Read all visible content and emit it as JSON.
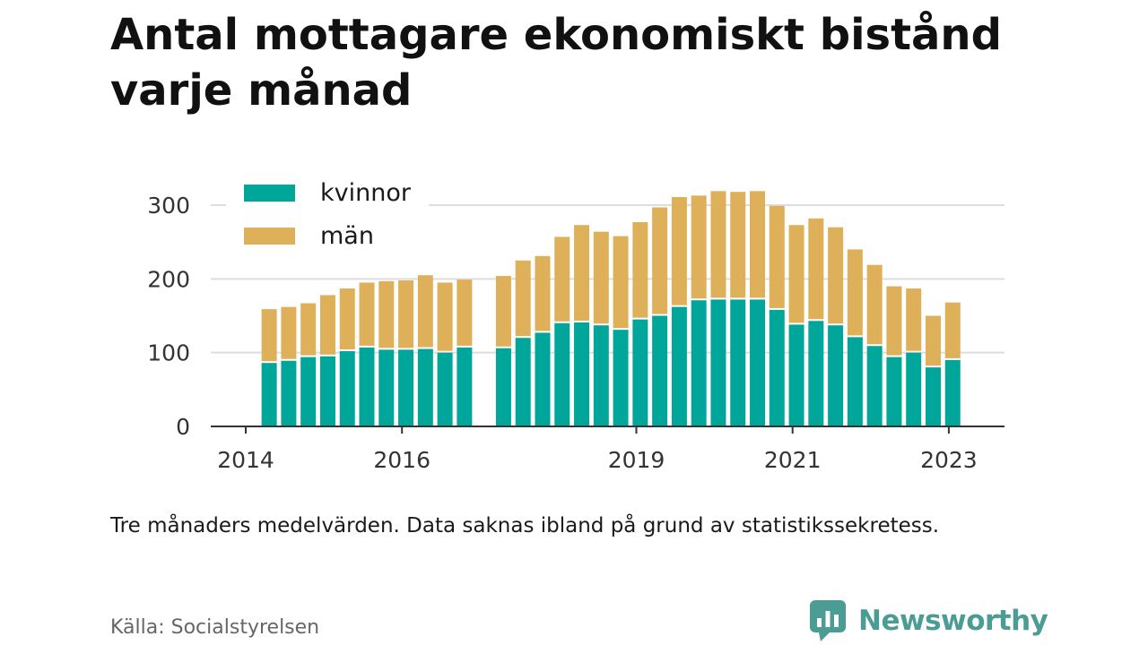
{
  "title": "Antal mottagare ekonomiskt bistånd varje månad",
  "note": "Tre månaders medelvärden. Data saknas ibland på grund av statistikssekretess.",
  "source": "Källa: Socialstyrelsen",
  "brand": {
    "name": "Newsworthy",
    "icon": "newsworthy-logo-icon",
    "color": "#4a9c94"
  },
  "colors": {
    "kvinnor": "#00a699",
    "man": "#deb05a",
    "grid": "#dddddd",
    "axis": "#333333"
  },
  "chart_data": {
    "type": "bar",
    "stacked": true,
    "grid": true,
    "legend_position": "top-left",
    "ylim": [
      0,
      325
    ],
    "yticks": [
      0,
      100,
      200,
      300
    ],
    "xticks": [
      {
        "label": "2014",
        "x": 2014.0
      },
      {
        "label": "2016",
        "x": 2016.0
      },
      {
        "label": "2019",
        "x": 2019.0
      },
      {
        "label": "2021",
        "x": 2021.0
      },
      {
        "label": "2023",
        "x": 2023.0
      }
    ],
    "x": [
      2014.3,
      2014.55,
      2014.8,
      2015.05,
      2015.3,
      2015.55,
      2015.8,
      2016.05,
      2016.3,
      2016.55,
      2016.8,
      2017.3,
      2017.55,
      2017.8,
      2018.05,
      2018.3,
      2018.55,
      2018.8,
      2019.05,
      2019.3,
      2019.55,
      2019.8,
      2020.05,
      2020.3,
      2020.55,
      2020.8,
      2021.05,
      2021.3,
      2021.55,
      2021.8,
      2022.05,
      2022.3,
      2022.55,
      2022.8,
      2023.05
    ],
    "series": [
      {
        "name": "kvinnor",
        "values": [
          86,
          89,
          94,
          95,
          102,
          107,
          104,
          104,
          105,
          100,
          107,
          106,
          120,
          127,
          140,
          141,
          137,
          131,
          145,
          150,
          162,
          171,
          172,
          172,
          172,
          158,
          138,
          143,
          137,
          121,
          109,
          94,
          100,
          80,
          90
        ]
      },
      {
        "name": "män",
        "values": [
          73,
          73,
          73,
          83,
          85,
          88,
          93,
          94,
          100,
          95,
          92,
          98,
          105,
          104,
          117,
          132,
          127,
          127,
          132,
          147,
          149,
          142,
          147,
          146,
          147,
          141,
          135,
          139,
          133,
          119,
          110,
          96,
          87,
          70,
          78
        ]
      }
    ]
  }
}
